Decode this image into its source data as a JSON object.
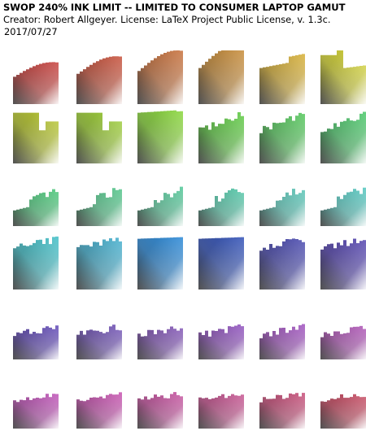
{
  "header": {
    "title": "SWOP 240% INK LIMIT -- LIMITED TO CONSUMER LAPTOP GAMUT",
    "creator": "Creator: Robert Allgeyer.  License: LaTeX Project Public License, v. 1.3c.",
    "date": "2017/07/27"
  },
  "swatches": [
    {
      "hue": "#c8403c"
    },
    {
      "hue": "#c8503a"
    },
    {
      "hue": "#c8703a"
    },
    {
      "hue": "#c88c38"
    },
    {
      "hue": "#d8b034"
    },
    {
      "hue": "#d8d830"
    },
    {
      "hue": "#b8c828"
    },
    {
      "hue": "#9cd030"
    },
    {
      "hue": "#88d838"
    },
    {
      "hue": "#5ccc40"
    },
    {
      "hue": "#50c858"
    },
    {
      "hue": "#48c868"
    },
    {
      "hue": "#48c878"
    },
    {
      "hue": "#4cc888"
    },
    {
      "hue": "#50c898"
    },
    {
      "hue": "#50c8a8"
    },
    {
      "hue": "#50c8b8"
    },
    {
      "hue": "#50c8c0"
    },
    {
      "hue": "#40c0c8"
    },
    {
      "hue": "#40b0d0"
    },
    {
      "hue": "#2888d8"
    },
    {
      "hue": "#3050b8"
    },
    {
      "hue": "#4848b0"
    },
    {
      "hue": "#5040b0"
    },
    {
      "hue": "#6048b8"
    },
    {
      "hue": "#7050b8"
    },
    {
      "hue": "#8050b8"
    },
    {
      "hue": "#9050c0"
    },
    {
      "hue": "#a050c0"
    },
    {
      "hue": "#b050b8"
    },
    {
      "hue": "#c050b8"
    },
    {
      "hue": "#c850b0"
    },
    {
      "hue": "#c850a0"
    },
    {
      "hue": "#c85090"
    },
    {
      "hue": "#c84c78"
    },
    {
      "hue": "#c84860"
    }
  ]
}
